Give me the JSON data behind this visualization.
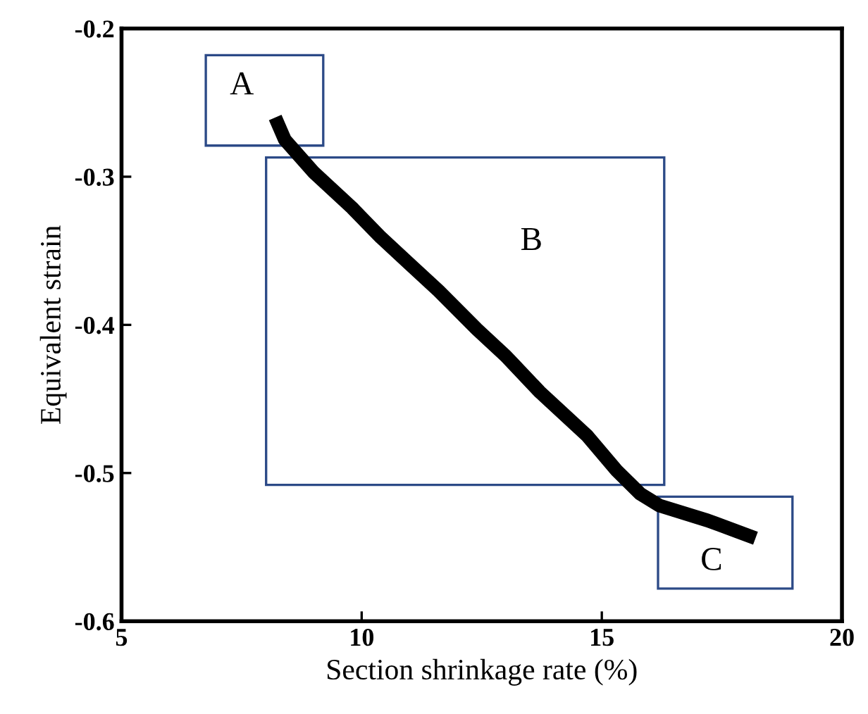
{
  "chart_data": {
    "type": "line",
    "xlabel": "Section shrinkage rate (%)",
    "ylabel": "Equivalent strain",
    "xlim": [
      5,
      20
    ],
    "xticks": [
      5,
      10,
      15,
      20
    ],
    "ylim": [
      -0.6,
      -0.2
    ],
    "yticks": [
      -0.6,
      -0.5,
      -0.4,
      -0.3,
      -0.2
    ],
    "grid": false,
    "legend": false,
    "series": [
      {
        "color": "#000000",
        "x": [
          8.2,
          8.4,
          9.0,
          9.8,
          10.4,
          11.0,
          11.6,
          12.4,
          13.0,
          13.7,
          14.7,
          15.3,
          15.8,
          16.2,
          17.2,
          18.2
        ],
        "values": [
          -0.26,
          -0.275,
          -0.297,
          -0.321,
          -0.341,
          -0.359,
          -0.377,
          -0.403,
          -0.421,
          -0.445,
          -0.475,
          -0.498,
          -0.514,
          -0.522,
          -0.532,
          -0.544
        ]
      }
    ],
    "annotations": [
      "A",
      "B",
      "C"
    ]
  }
}
